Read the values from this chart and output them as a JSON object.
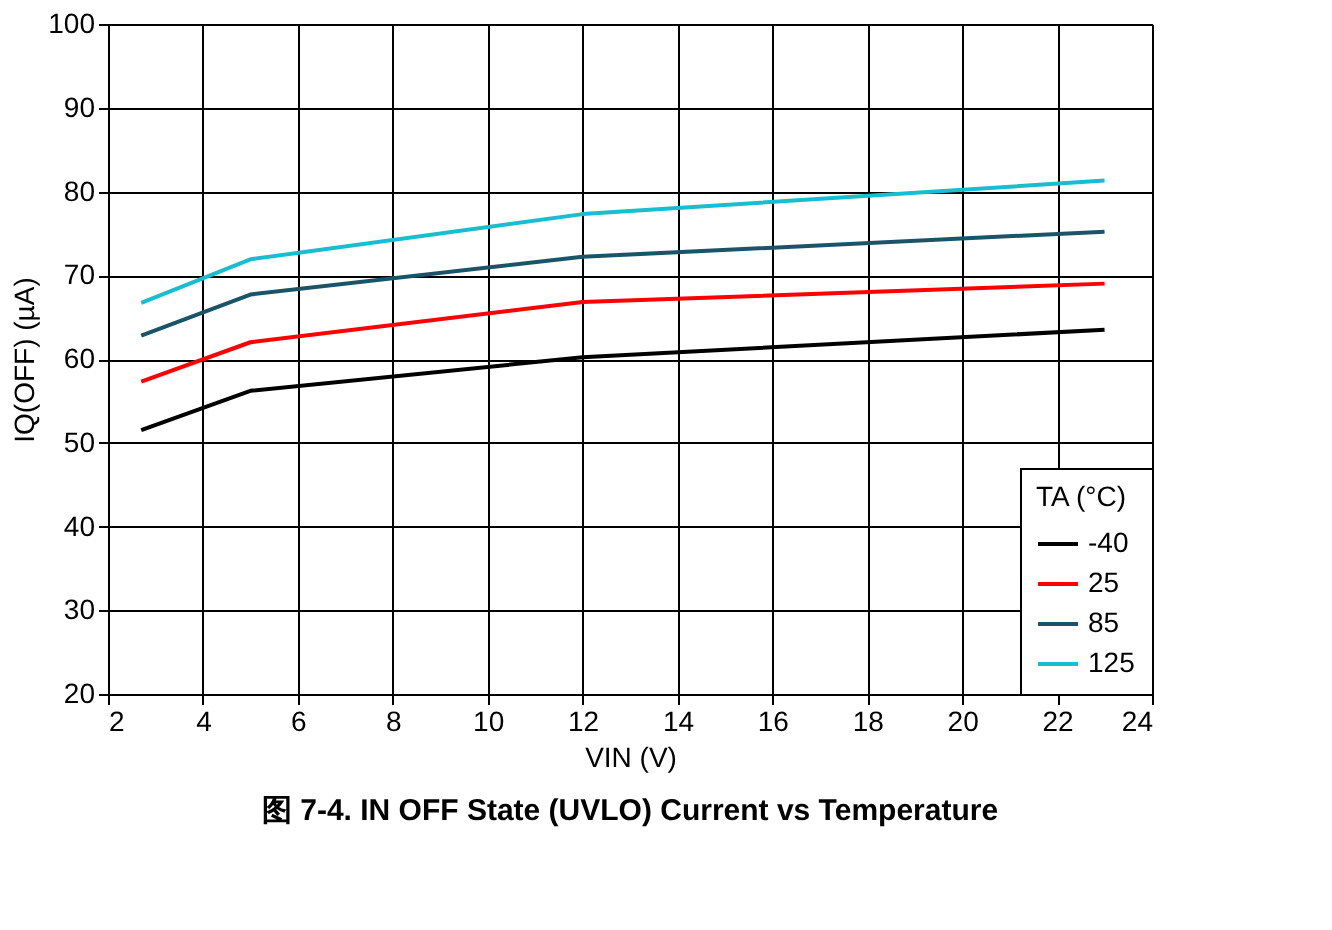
{
  "chart_data": {
    "type": "line",
    "title": "图 7-4. IN OFF State (UVLO) Current vs Temperature",
    "xlabel": "VIN (V)",
    "ylabel": "IQ(OFF) (µA)",
    "legend_title": "TA (°C)",
    "x": [
      2.7,
      5,
      12,
      23
    ],
    "series": [
      {
        "name": "-40",
        "color": "#000000",
        "values": [
          51.5,
          56.2,
          60.2,
          63.5
        ]
      },
      {
        "name": "25",
        "color": "#ff0000",
        "values": [
          57.3,
          62,
          66.8,
          69
        ]
      },
      {
        "name": "85",
        "color": "#1a5468",
        "values": [
          62.8,
          67.7,
          72.2,
          75.2
        ]
      },
      {
        "name": "125",
        "color": "#17becf",
        "values": [
          66.7,
          71.9,
          77.3,
          81.3
        ]
      }
    ],
    "xlim": [
      2,
      24
    ],
    "xticks": [
      2,
      4,
      6,
      8,
      10,
      12,
      14,
      16,
      18,
      20,
      22,
      24
    ],
    "ylim": [
      20,
      100
    ],
    "yticks": [
      20,
      30,
      40,
      50,
      60,
      70,
      80,
      90,
      100
    ],
    "grid": true,
    "legend": "bottom right",
    "marker": "none",
    "line_style": "solid"
  }
}
